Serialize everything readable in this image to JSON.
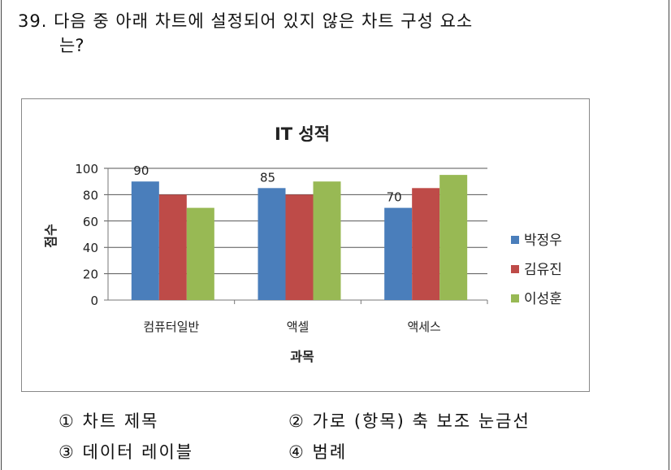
{
  "question": {
    "number": "39.",
    "text_line1": "다음 중 아래 차트에 설정되어 있지 않은 차트 구성 요소",
    "text_line2": "는?"
  },
  "options": [
    {
      "num": "①",
      "label": "차트 제목"
    },
    {
      "num": "②",
      "label": "가로 (항목) 축 보조 눈금선"
    },
    {
      "num": "③",
      "label": "데이터 레이블"
    },
    {
      "num": "④",
      "label": "범례"
    }
  ],
  "chart_data": {
    "type": "bar",
    "title": "IT 성적",
    "xlabel": "과목",
    "ylabel": "점수",
    "categories": [
      "컴퓨터일반",
      "액셀",
      "액세스"
    ],
    "ylim": [
      0,
      100
    ],
    "yticks": [
      0,
      20,
      40,
      60,
      80,
      100
    ],
    "grid": true,
    "legend": "right",
    "series": [
      {
        "name": "박정우",
        "values": [
          90,
          85,
          70
        ],
        "color": "#4a7ebb",
        "data_labels": true
      },
      {
        "name": "김유진",
        "values": [
          80,
          80,
          85
        ],
        "color": "#be4b48",
        "data_labels": false
      },
      {
        "name": "이성훈",
        "values": [
          70,
          90,
          95
        ],
        "color": "#98b954",
        "data_labels": false
      }
    ]
  }
}
